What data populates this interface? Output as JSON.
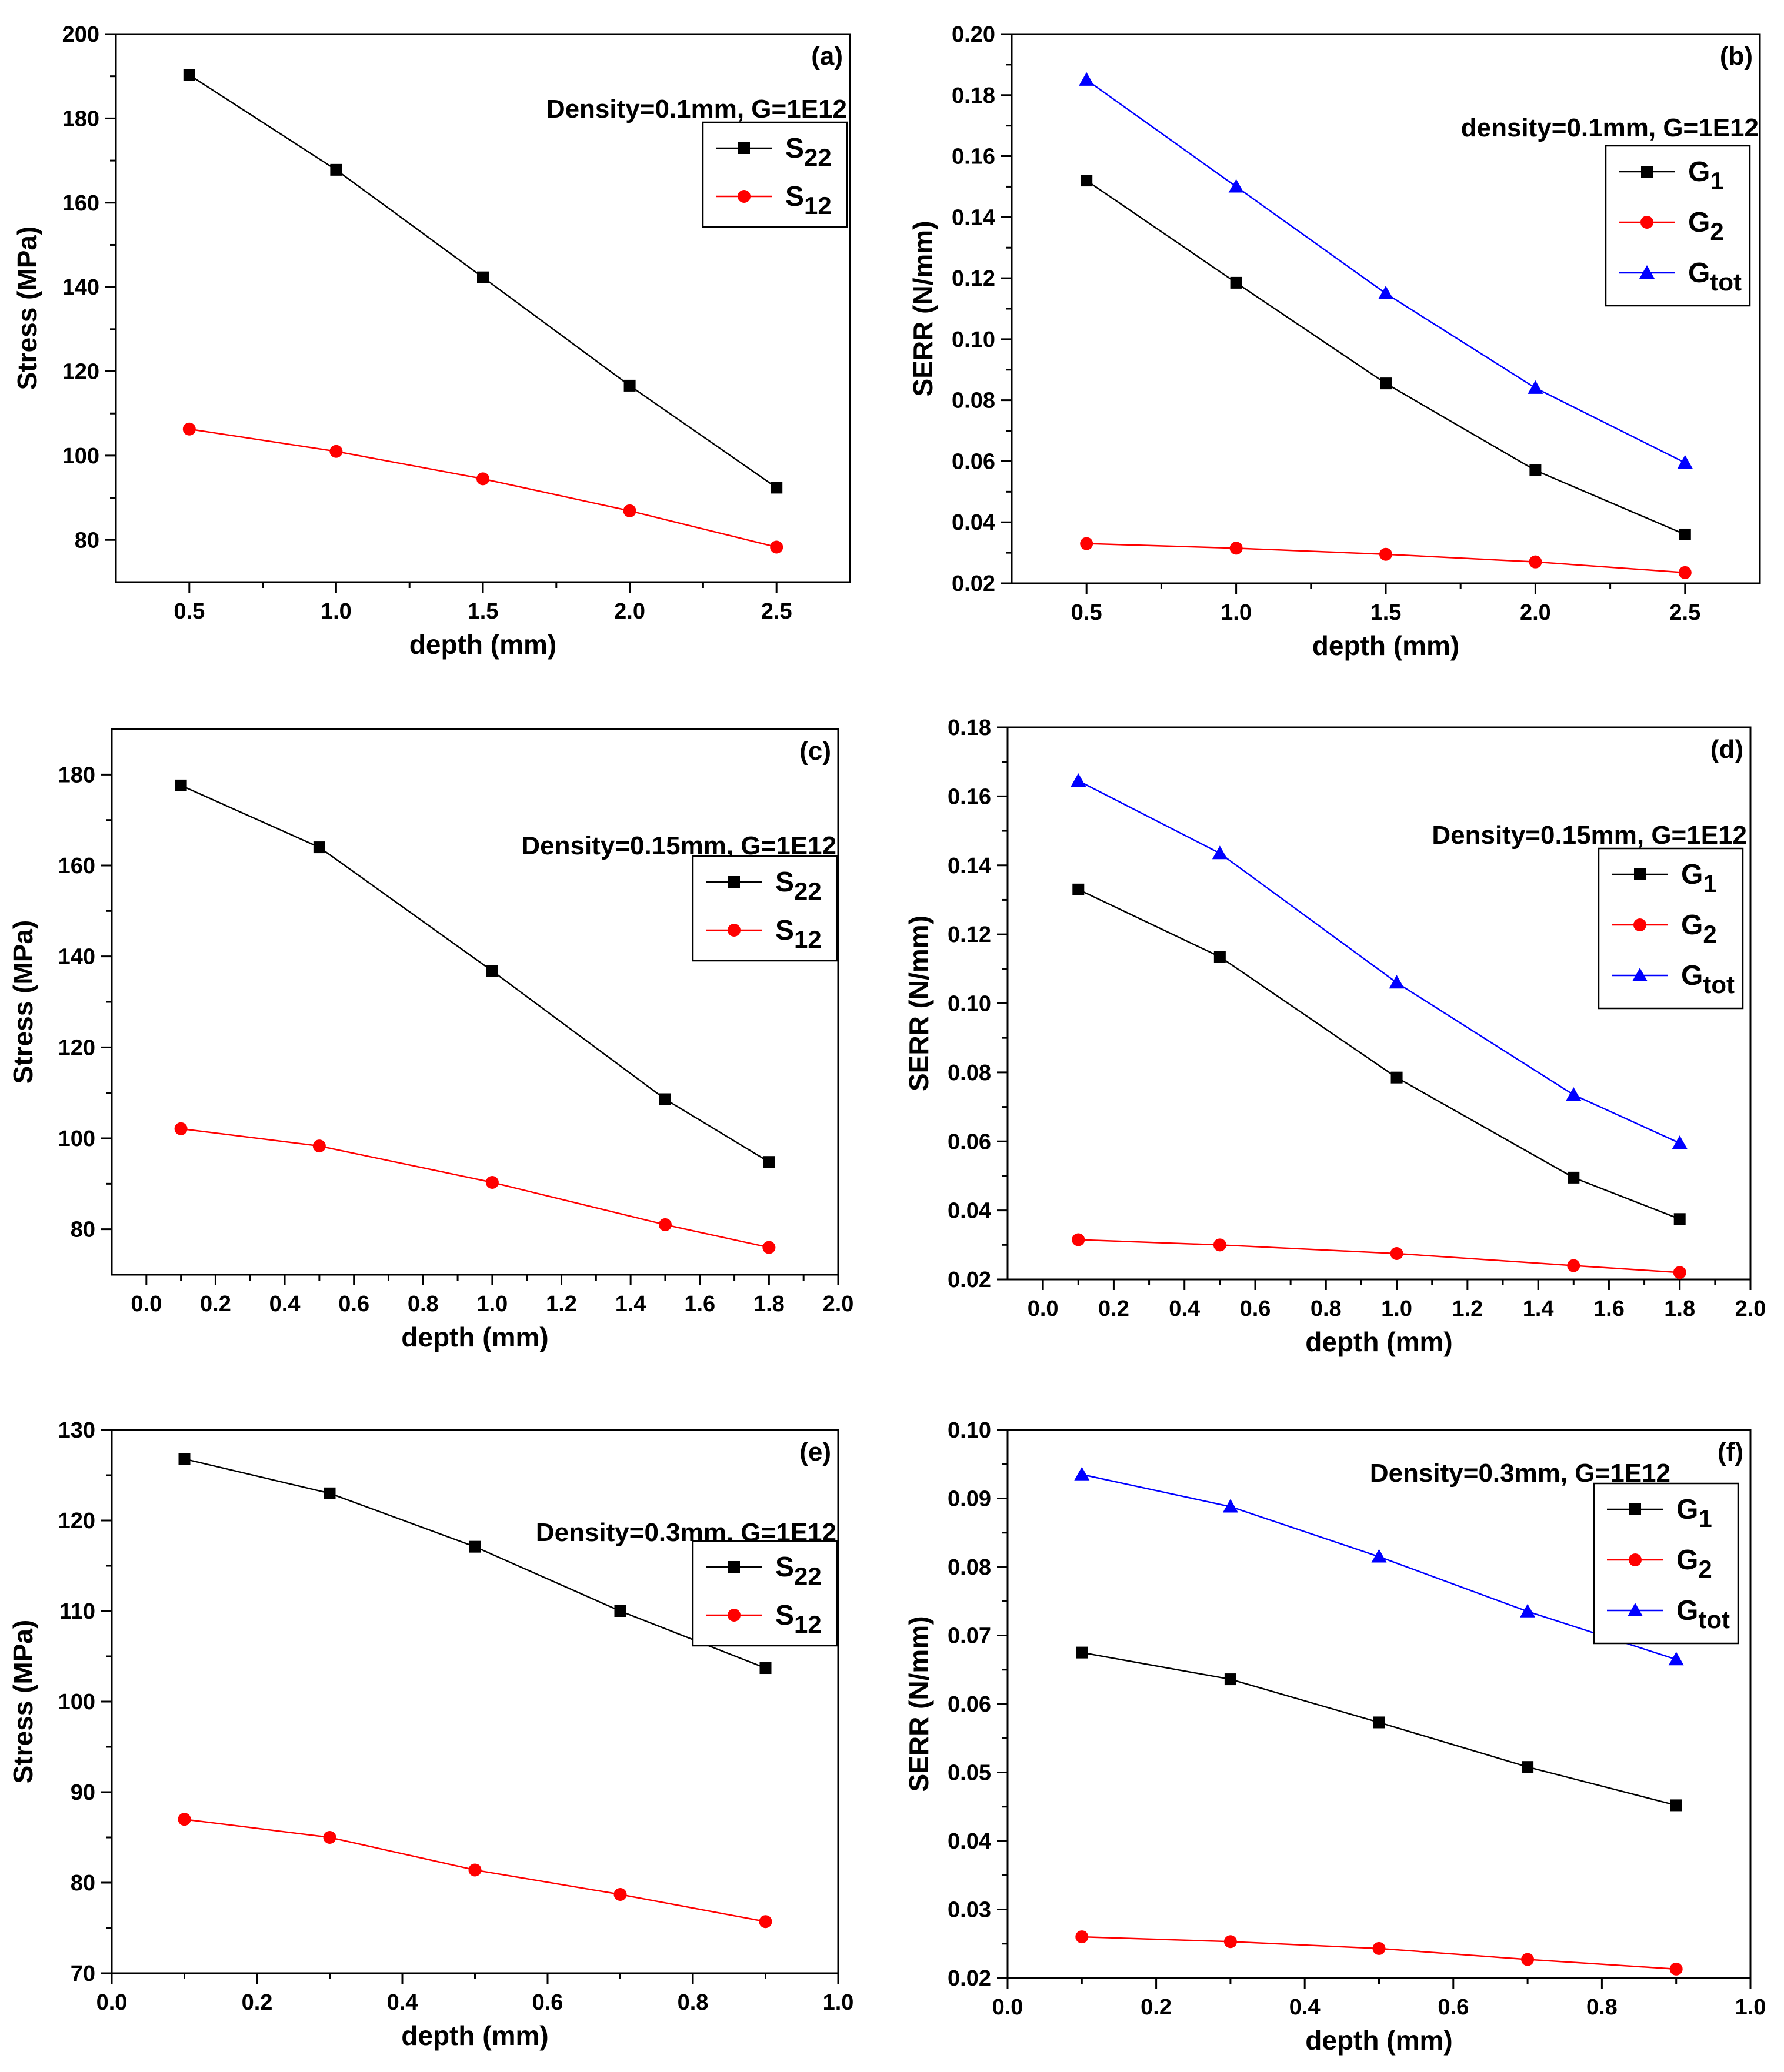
{
  "chart_data": [
    {
      "panel_label": "(a)",
      "type": "line",
      "annotation": "Density=0.1mm, G=1E12",
      "xlabel": "depth (mm)",
      "ylabel": "Stress (MPa)",
      "xlim": [
        0.25,
        2.75
      ],
      "ylim": [
        70,
        200
      ],
      "xticks": [
        0.5,
        1.0,
        1.5,
        2.0,
        2.5
      ],
      "xtick_labels": [
        "0.5",
        "1.0",
        "1.5",
        "2.0",
        "2.5"
      ],
      "yticks": [
        80,
        100,
        120,
        140,
        160,
        180,
        200
      ],
      "ytick_labels": [
        "80",
        "100",
        "120",
        "140",
        "160",
        "180",
        "200"
      ],
      "x": [
        0.5,
        1.0,
        1.5,
        2.0,
        2.5
      ],
      "series": [
        {
          "name": "S22",
          "symbol": "S",
          "subscript": "22",
          "color": "#000000",
          "marker": "square",
          "values": [
            190.3,
            167.8,
            142.3,
            116.6,
            92.4
          ]
        },
        {
          "name": "S12",
          "symbol": "S",
          "subscript": "12",
          "color": "#ff0000",
          "marker": "circle",
          "values": [
            106.3,
            101.0,
            94.5,
            86.9,
            78.3
          ]
        }
      ]
    },
    {
      "panel_label": "(b)",
      "type": "line",
      "annotation": "density=0.1mm, G=1E12",
      "xlabel": "depth (mm)",
      "ylabel": "SERR (N/mm)",
      "xlim": [
        0.25,
        2.75
      ],
      "ylim": [
        0.02,
        0.2
      ],
      "xticks": [
        0.5,
        1.0,
        1.5,
        2.0,
        2.5
      ],
      "xtick_labels": [
        "0.5",
        "1.0",
        "1.5",
        "2.0",
        "2.5"
      ],
      "yticks": [
        0.02,
        0.04,
        0.06,
        0.08,
        0.1,
        0.12,
        0.14,
        0.16,
        0.18,
        0.2
      ],
      "ytick_labels": [
        "0.02",
        "0.04",
        "0.06",
        "0.08",
        "0.10",
        "0.12",
        "0.14",
        "0.16",
        "0.18",
        "0.20"
      ],
      "x": [
        0.5,
        1.0,
        1.5,
        2.0,
        2.5
      ],
      "series": [
        {
          "name": "G1",
          "symbol": "G",
          "subscript": "1",
          "color": "#000000",
          "marker": "square",
          "values": [
            0.152,
            0.1185,
            0.0855,
            0.057,
            0.036
          ]
        },
        {
          "name": "G2",
          "symbol": "G",
          "subscript": "2",
          "color": "#ff0000",
          "marker": "circle",
          "values": [
            0.033,
            0.0315,
            0.0295,
            0.027,
            0.0235
          ]
        },
        {
          "name": "Gtot",
          "symbol": "G",
          "subscript": "tot",
          "color": "#0000ff",
          "marker": "triangle",
          "values": [
            0.185,
            0.15,
            0.115,
            0.084,
            0.0595
          ]
        }
      ]
    },
    {
      "panel_label": "(c)",
      "type": "line",
      "annotation": "Density=0.15mm, G=1E12",
      "xlabel": "depth (mm)",
      "ylabel": "Stress (MPa)",
      "xlim": [
        -0.1,
        2.0
      ],
      "ylim": [
        70,
        190
      ],
      "xticks": [
        0.0,
        0.2,
        0.4,
        0.6,
        0.8,
        1.0,
        1.2,
        1.4,
        1.6,
        1.8,
        2.0
      ],
      "xtick_labels": [
        "0.0",
        "0.2",
        "0.4",
        "0.6",
        "0.8",
        "1.0",
        "1.2",
        "1.4",
        "1.6",
        "1.8",
        "2.0"
      ],
      "yticks": [
        80,
        100,
        120,
        140,
        160,
        180
      ],
      "ytick_labels": [
        "80",
        "100",
        "120",
        "140",
        "160",
        "180"
      ],
      "x": [
        0.1,
        0.5,
        1.0,
        1.5,
        1.8
      ],
      "series": [
        {
          "name": "S22",
          "symbol": "S",
          "subscript": "22",
          "color": "#000000",
          "marker": "square",
          "values": [
            177.6,
            164.0,
            136.8,
            108.6,
            94.8
          ]
        },
        {
          "name": "S12",
          "symbol": "S",
          "subscript": "12",
          "color": "#ff0000",
          "marker": "circle",
          "values": [
            102.1,
            98.3,
            90.3,
            81.0,
            76.0
          ]
        }
      ]
    },
    {
      "panel_label": "(d)",
      "type": "line",
      "annotation": "Density=0.15mm, G=1E12",
      "xlabel": "depth (mm)",
      "ylabel": "SERR (N/mm)",
      "xlim": [
        -0.1,
        2.0
      ],
      "ylim": [
        0.02,
        0.18
      ],
      "xticks": [
        0.0,
        0.2,
        0.4,
        0.6,
        0.8,
        1.0,
        1.2,
        1.4,
        1.6,
        1.8,
        2.0
      ],
      "xtick_labels": [
        "0.0",
        "0.2",
        "0.4",
        "0.6",
        "0.8",
        "1.0",
        "1.2",
        "1.4",
        "1.6",
        "1.8",
        "2.0"
      ],
      "yticks": [
        0.02,
        0.04,
        0.06,
        0.08,
        0.1,
        0.12,
        0.14,
        0.16,
        0.18
      ],
      "ytick_labels": [
        "0.02",
        "0.04",
        "0.06",
        "0.08",
        "0.10",
        "0.12",
        "0.14",
        "0.16",
        "0.18"
      ],
      "x": [
        0.1,
        0.5,
        1.0,
        1.5,
        1.8
      ],
      "series": [
        {
          "name": "G1",
          "symbol": "G",
          "subscript": "1",
          "color": "#000000",
          "marker": "square",
          "values": [
            0.133,
            0.1135,
            0.0785,
            0.0495,
            0.0375
          ]
        },
        {
          "name": "G2",
          "symbol": "G",
          "subscript": "2",
          "color": "#ff0000",
          "marker": "circle",
          "values": [
            0.0315,
            0.03,
            0.0275,
            0.024,
            0.022
          ]
        },
        {
          "name": "Gtot",
          "symbol": "G",
          "subscript": "tot",
          "color": "#0000ff",
          "marker": "triangle",
          "values": [
            0.1645,
            0.1435,
            0.106,
            0.0735,
            0.0595
          ]
        }
      ]
    },
    {
      "panel_label": "(e)",
      "type": "line",
      "annotation": "Density=0.3mm, G=1E12",
      "xlabel": "depth (mm)",
      "ylabel": "Stress (MPa)",
      "xlim": [
        0.0,
        1.0
      ],
      "ylim": [
        70,
        130
      ],
      "xticks": [
        0.0,
        0.2,
        0.4,
        0.6,
        0.8,
        1.0
      ],
      "xtick_labels": [
        "0.0",
        "0.2",
        "0.4",
        "0.6",
        "0.8",
        "1.0"
      ],
      "yticks": [
        70,
        80,
        90,
        100,
        110,
        120,
        130
      ],
      "ytick_labels": [
        "70",
        "80",
        "90",
        "100",
        "110",
        "120",
        "130"
      ],
      "x": [
        0.1,
        0.3,
        0.5,
        0.7,
        0.9
      ],
      "series": [
        {
          "name": "S22",
          "symbol": "S",
          "subscript": "22",
          "color": "#000000",
          "marker": "square",
          "values": [
            126.8,
            123.0,
            117.1,
            110.0,
            103.7
          ]
        },
        {
          "name": "S12",
          "symbol": "S",
          "subscript": "12",
          "color": "#ff0000",
          "marker": "circle",
          "values": [
            87.0,
            85.0,
            81.4,
            78.7,
            75.7
          ]
        }
      ]
    },
    {
      "panel_label": "(f)",
      "type": "line",
      "annotation": "Density=0.3mm, G=1E12",
      "xlabel": "depth (mm)",
      "ylabel": "SERR (N/mm)",
      "xlim": [
        0.0,
        1.0
      ],
      "ylim": [
        0.02,
        0.1
      ],
      "xticks": [
        0.0,
        0.2,
        0.4,
        0.6,
        0.8,
        1.0
      ],
      "xtick_labels": [
        "0.0",
        "0.2",
        "0.4",
        "0.6",
        "0.8",
        "1.0"
      ],
      "yticks": [
        0.02,
        0.03,
        0.04,
        0.05,
        0.06,
        0.07,
        0.08,
        0.09,
        0.1
      ],
      "ytick_labels": [
        "0.02",
        "0.03",
        "0.04",
        "0.05",
        "0.06",
        "0.07",
        "0.08",
        "0.09",
        "0.10"
      ],
      "x": [
        0.1,
        0.3,
        0.5,
        0.7,
        0.9
      ],
      "series": [
        {
          "name": "G1",
          "symbol": "G",
          "subscript": "1",
          "color": "#000000",
          "marker": "square",
          "values": [
            0.0675,
            0.0636,
            0.0573,
            0.0508,
            0.0452
          ]
        },
        {
          "name": "G2",
          "symbol": "G",
          "subscript": "2",
          "color": "#ff0000",
          "marker": "circle",
          "values": [
            0.026,
            0.0253,
            0.0243,
            0.0227,
            0.0213
          ]
        },
        {
          "name": "Gtot",
          "symbol": "G",
          "subscript": "tot",
          "color": "#0000ff",
          "marker": "triangle",
          "values": [
            0.0935,
            0.0888,
            0.0815,
            0.0735,
            0.0665
          ]
        }
      ]
    }
  ]
}
